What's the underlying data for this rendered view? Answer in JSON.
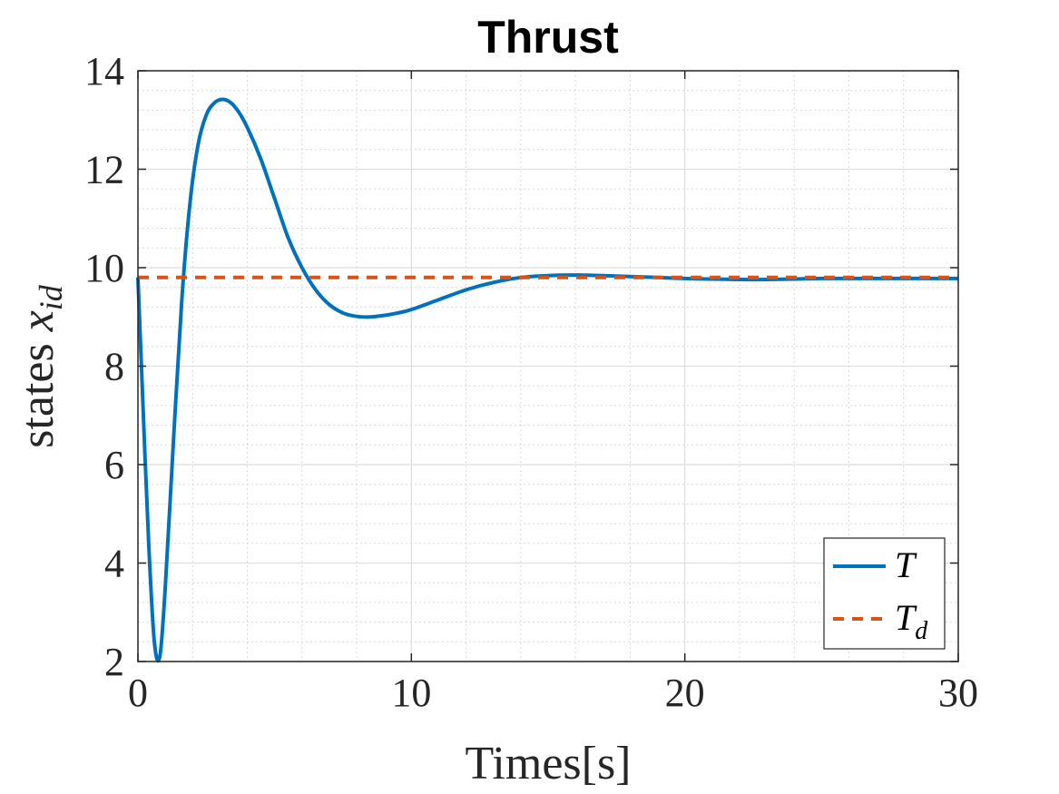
{
  "chart_data": {
    "type": "line",
    "title": "Thrust",
    "xlabel": "Times[s]",
    "ylabel": {
      "text": "states ",
      "math": "x",
      "sub": "id"
    },
    "xlim": [
      0,
      30
    ],
    "ylim": [
      2,
      14
    ],
    "xticks": [
      "0",
      "10",
      "20",
      "30"
    ],
    "yticks": [
      "2",
      "4",
      "6",
      "8",
      "10",
      "12",
      "14"
    ],
    "grid": true,
    "minor_grid": true,
    "legend_position": "bottom-right",
    "series": [
      {
        "name": "T",
        "name_sub": "",
        "style": "solid",
        "color": "#0072BD",
        "x": [
          0,
          0.2,
          0.4,
          0.6,
          0.8,
          1.0,
          1.3,
          1.6,
          1.9,
          2.2,
          2.5,
          2.8,
          3.1,
          3.4,
          3.7,
          4.0,
          4.5,
          5.0,
          5.5,
          6.0,
          6.5,
          7.0,
          7.5,
          8.0,
          8.5,
          9.0,
          9.5,
          10,
          11,
          12,
          13,
          14,
          15,
          16,
          17,
          18,
          19,
          20,
          21,
          22,
          23,
          24,
          25,
          26,
          27,
          28,
          29,
          30
        ],
        "y": [
          9.8,
          7.0,
          4.3,
          2.4,
          2.1,
          3.5,
          6.5,
          9.3,
          11.3,
          12.5,
          13.1,
          13.35,
          13.42,
          13.35,
          13.15,
          12.85,
          12.2,
          11.4,
          10.6,
          10.0,
          9.55,
          9.25,
          9.08,
          9.01,
          9.0,
          9.03,
          9.08,
          9.15,
          9.35,
          9.55,
          9.7,
          9.8,
          9.84,
          9.85,
          9.84,
          9.82,
          9.8,
          9.78,
          9.77,
          9.76,
          9.76,
          9.77,
          9.78,
          9.78,
          9.78,
          9.78,
          9.78,
          9.78
        ]
      },
      {
        "name": "T",
        "name_sub": "d",
        "style": "dashed",
        "color": "#D95319",
        "x": [
          0,
          30
        ],
        "y": [
          9.8,
          9.8
        ]
      }
    ]
  }
}
